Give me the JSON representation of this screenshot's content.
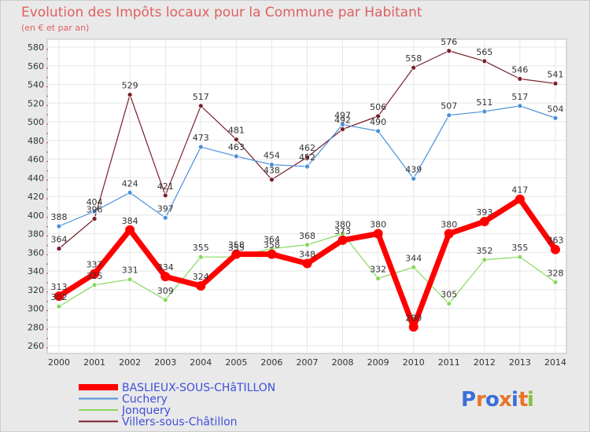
{
  "chart_data": {
    "type": "line",
    "title": "Evolution des Impôts locaux pour la Commune par Habitant",
    "subtitle": "(en € et par an)",
    "xlabel": "",
    "ylabel": "",
    "ylim": [
      260,
      580
    ],
    "ytick_step": 20,
    "grid": true,
    "x": [
      "2000",
      "2001",
      "2002",
      "2003",
      "2004",
      "2005",
      "2006",
      "2007",
      "2008",
      "2009",
      "2010",
      "2011",
      "2012",
      "2013",
      "2014"
    ],
    "y_ticks": [
      "260",
      "280",
      "300",
      "320",
      "340",
      "360",
      "380",
      "400",
      "420",
      "440",
      "460",
      "480",
      "500",
      "520",
      "540",
      "560",
      "580"
    ],
    "series": [
      {
        "name": "BASLIEUX-SOUS-CHâTILLON",
        "color": "#ff0000",
        "values": [
          313,
          337,
          384,
          334,
          324,
          358,
          358,
          348,
          373,
          380,
          280,
          380,
          393,
          417,
          363
        ],
        "labels": [
          "313",
          "337",
          "384",
          "334",
          "324",
          "358",
          "358",
          "348",
          "373",
          "380",
          "280",
          "380",
          "393",
          "417",
          "363"
        ]
      },
      {
        "name": "Cuchery",
        "color": "#4a90d9",
        "values": [
          388,
          404,
          424,
          397,
          473,
          463,
          454,
          452,
          497,
          490,
          439,
          507,
          511,
          517,
          504
        ],
        "labels": [
          "388",
          "404",
          "424",
          "397",
          "473",
          "463",
          "454",
          "452",
          "497",
          "490",
          "439",
          "507",
          "511",
          "517",
          "504"
        ]
      },
      {
        "name": "Jonquery",
        "color": "#88d860",
        "values": [
          302,
          325,
          331,
          309,
          355,
          355,
          364,
          368,
          380,
          332,
          344,
          305,
          352,
          355,
          328
        ],
        "labels": [
          "302",
          "325",
          "331",
          "309",
          "355",
          "355",
          "364",
          "368",
          "380",
          "332",
          "344",
          "305",
          "352",
          "355",
          "328"
        ]
      },
      {
        "name": "Villers-sous-Châtillon",
        "color": "#7a1f2a",
        "values": [
          364,
          396,
          529,
          421,
          517,
          481,
          438,
          462,
          492,
          506,
          558,
          576,
          565,
          546,
          541
        ],
        "labels": [
          "364",
          "396",
          "529",
          "421",
          "517",
          "481",
          "438",
          "462",
          "492",
          "506",
          "558",
          "576",
          "565",
          "546",
          "541"
        ]
      }
    ],
    "legend": {
      "position": "bottom-left",
      "entries": [
        "BASLIEUX-SOUS-CHâTILLON",
        "Cuchery",
        "Jonquery",
        "Villers-sous-Châtillon"
      ]
    }
  },
  "logo": {
    "text": "Proxiti",
    "letters": [
      "P",
      "r",
      "o",
      "x",
      "i",
      "t",
      "i"
    ],
    "colors": [
      "#3b6fd8",
      "#e8742a",
      "#3b6fd8",
      "#e8742a",
      "#3b6fd8",
      "#e8742a",
      "#88c040"
    ]
  }
}
